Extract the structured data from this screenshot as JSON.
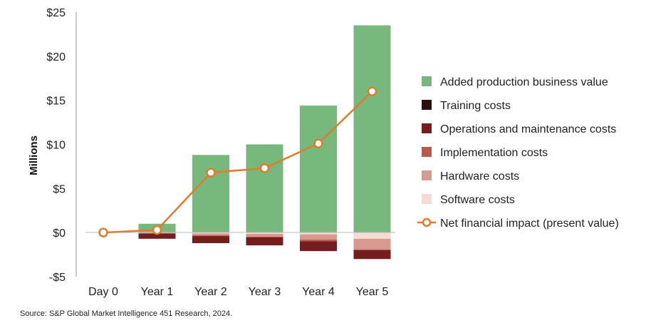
{
  "chart_data": {
    "type": "bar",
    "ylabel": "Millions",
    "ylim": [
      -5,
      25
    ],
    "yticks": [
      -5,
      0,
      5,
      10,
      15,
      20,
      25
    ],
    "ytick_labels": [
      "-$5",
      "$0",
      "$5",
      "$10",
      "$15",
      "$20",
      "$25"
    ],
    "categories": [
      "Day 0",
      "Year 1",
      "Year 2",
      "Year 3",
      "Year 4",
      "Year 5"
    ],
    "positive_series": [
      {
        "name": "Added production business value",
        "color": "#77b87c",
        "values": [
          0,
          1.0,
          8.8,
          10.0,
          14.4,
          23.5
        ]
      }
    ],
    "negative_series": [
      {
        "name": "Software costs",
        "color": "#f5dcd3",
        "values": [
          0,
          0,
          -0.1,
          -0.15,
          -0.2,
          -0.7
        ]
      },
      {
        "name": "Hardware costs",
        "color": "#d89a8f",
        "values": [
          0,
          -0.1,
          -0.2,
          -0.3,
          -0.6,
          -1.2
        ]
      },
      {
        "name": "Implementation costs",
        "color": "#b65a4e",
        "values": [
          0,
          0,
          -0.1,
          -0.1,
          -0.2,
          -0.1
        ]
      },
      {
        "name": "Operations and maintenance costs",
        "color": "#741d1f",
        "values": [
          0,
          -0.6,
          -0.8,
          -0.9,
          -1.1,
          -1.0
        ]
      },
      {
        "name": "Training costs",
        "color": "#2a0f10",
        "values": [
          0,
          0,
          0,
          0,
          0,
          0
        ]
      }
    ],
    "line_series": {
      "name": "Net financial impact (present value)",
      "color": "#e07b2e",
      "values": [
        0,
        0.3,
        6.8,
        7.3,
        10.1,
        16.0
      ]
    },
    "legend": {
      "placement": "right",
      "items": [
        {
          "label": "Added production business value",
          "color": "#77b87c",
          "kind": "box"
        },
        {
          "label": "Training costs",
          "color": "#2a0f10",
          "kind": "box"
        },
        {
          "label": "Operations and maintenance costs",
          "color": "#741d1f",
          "kind": "box"
        },
        {
          "label": "Implementation costs",
          "color": "#b65a4e",
          "kind": "box"
        },
        {
          "label": "Hardware costs",
          "color": "#d89a8f",
          "kind": "box"
        },
        {
          "label": "Software costs",
          "color": "#f5dcd3",
          "kind": "box"
        },
        {
          "label": "Net financial impact (present value)",
          "color": "#e07b2e",
          "kind": "line"
        }
      ]
    },
    "source": "Source: S&P Global Market Intelligence 451 Research, 2024."
  }
}
